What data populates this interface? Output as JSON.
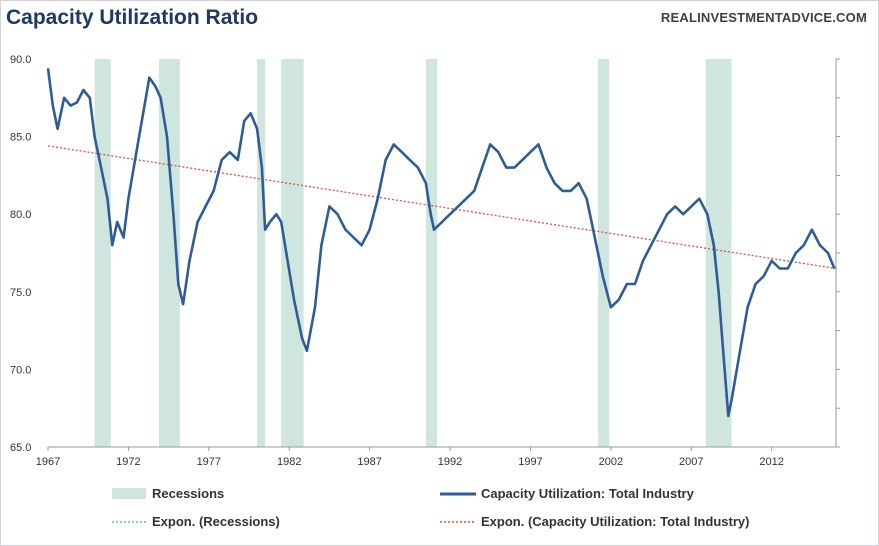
{
  "chart_data": {
    "type": "line",
    "title": "Capacity Utilization Ratio",
    "source": "REALINVESTMENTADVICE.COM",
    "ylim": [
      65,
      90
    ],
    "xlim": [
      1967,
      2016
    ],
    "y_ticks": [
      "90.0",
      "85.0",
      "80.0",
      "75.0",
      "70.0",
      "65.0"
    ],
    "x_ticks": [
      "1967",
      "1972",
      "1977",
      "1982",
      "1987",
      "1992",
      "1997",
      "2002",
      "2007",
      "2012"
    ],
    "legend": {
      "recessions": "Recessions",
      "capacity": "Capacity Utilization: Total Industry",
      "expon_recessions": "Expon. (Recessions)",
      "expon_capacity": "Expon. (Capacity Utilization: Total Industry)"
    },
    "recessions": [
      [
        1969.9,
        1970.9
      ],
      [
        1973.9,
        1975.2
      ],
      [
        1980.0,
        1980.5
      ],
      [
        1981.5,
        1982.9
      ],
      [
        1990.5,
        1991.2
      ],
      [
        2001.2,
        2001.9
      ],
      [
        2007.9,
        2009.5
      ]
    ],
    "trend": {
      "start": [
        1967,
        84.4
      ],
      "end": [
        2016,
        76.5
      ]
    },
    "series": [
      {
        "name": "Capacity Utilization: Total Industry",
        "x": [
          1967.0,
          1967.3,
          1967.6,
          1968.0,
          1968.4,
          1968.8,
          1969.2,
          1969.6,
          1969.9,
          1970.3,
          1970.7,
          1971.0,
          1971.3,
          1971.7,
          1972.0,
          1972.5,
          1973.0,
          1973.3,
          1973.7,
          1974.0,
          1974.4,
          1974.8,
          1975.1,
          1975.4,
          1975.8,
          1976.3,
          1976.8,
          1977.3,
          1977.8,
          1978.3,
          1978.8,
          1979.2,
          1979.6,
          1980.0,
          1980.3,
          1980.5,
          1980.8,
          1981.2,
          1981.5,
          1981.9,
          1982.3,
          1982.8,
          1983.1,
          1983.6,
          1984.0,
          1984.5,
          1985.0,
          1985.5,
          1986.0,
          1986.5,
          1987.0,
          1987.5,
          1988.0,
          1988.5,
          1989.0,
          1989.5,
          1990.0,
          1990.5,
          1990.8,
          1991.0,
          1991.5,
          1992.0,
          1992.5,
          1993.0,
          1993.5,
          1994.0,
          1994.5,
          1995.0,
          1995.5,
          1996.0,
          1996.5,
          1997.0,
          1997.5,
          1998.0,
          1998.5,
          1999.0,
          1999.5,
          2000.0,
          2000.5,
          2001.0,
          2001.5,
          2002.0,
          2002.5,
          2003.0,
          2003.5,
          2004.0,
          2004.5,
          2005.0,
          2005.5,
          2006.0,
          2006.5,
          2007.0,
          2007.5,
          2008.0,
          2008.4,
          2008.7,
          2009.0,
          2009.3,
          2009.5,
          2010.0,
          2010.5,
          2011.0,
          2011.5,
          2012.0,
          2012.5,
          2013.0,
          2013.5,
          2014.0,
          2014.5,
          2015.0,
          2015.5,
          2015.9
        ],
        "values": [
          89.4,
          87.0,
          85.5,
          87.5,
          87.0,
          87.2,
          88.0,
          87.5,
          85.0,
          83.0,
          81.0,
          78.0,
          79.5,
          78.5,
          81.0,
          84.0,
          87.0,
          88.8,
          88.2,
          87.5,
          85.0,
          80.0,
          75.5,
          74.2,
          77.0,
          79.5,
          80.5,
          81.5,
          83.5,
          84.0,
          83.5,
          86.0,
          86.5,
          85.5,
          83.0,
          79.0,
          79.5,
          80.0,
          79.5,
          77.0,
          74.5,
          72.0,
          71.2,
          74.0,
          78.0,
          80.5,
          80.0,
          79.0,
          78.5,
          78.0,
          79.0,
          81.0,
          83.5,
          84.5,
          84.0,
          83.5,
          83.0,
          82.0,
          80.0,
          79.0,
          79.5,
          80.0,
          80.5,
          81.0,
          81.5,
          83.0,
          84.5,
          84.0,
          83.0,
          83.0,
          83.5,
          84.0,
          84.5,
          83.0,
          82.0,
          81.5,
          81.5,
          82.0,
          81.0,
          78.5,
          76.0,
          74.0,
          74.5,
          75.5,
          75.5,
          77.0,
          78.0,
          79.0,
          80.0,
          80.5,
          80.0,
          80.5,
          81.0,
          80.0,
          78.0,
          75.0,
          71.0,
          67.0,
          68.0,
          71.0,
          74.0,
          75.5,
          76.0,
          77.0,
          76.5,
          76.5,
          77.5,
          78.0,
          79.0,
          78.0,
          77.5,
          76.5
        ]
      }
    ]
  }
}
